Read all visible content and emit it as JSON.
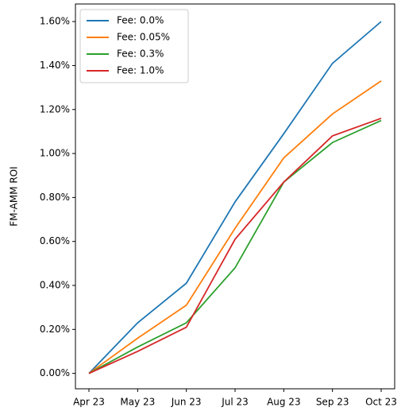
{
  "chart_data": {
    "type": "line",
    "ylabel": "FM-AMM ROI",
    "categories": [
      "Apr 23",
      "May 23",
      "Jun 23",
      "Jul 23",
      "Aug 23",
      "Sep 23",
      "Oct 23"
    ],
    "series": [
      {
        "name": "Fee: 0.0%",
        "color": "#1f77b4",
        "values": [
          0,
          0.23,
          0.41,
          0.78,
          1.09,
          1.41,
          1.6
        ]
      },
      {
        "name": "Fee: 0.05%",
        "color": "#ff7f0e",
        "values": [
          0,
          0.16,
          0.31,
          0.66,
          0.98,
          1.18,
          1.33
        ]
      },
      {
        "name": "Fee: 0.3%",
        "color": "#2ca02c",
        "values": [
          0,
          0.12,
          0.23,
          0.48,
          0.87,
          1.05,
          1.15
        ]
      },
      {
        "name": "Fee: 1.0%",
        "color": "#d62728",
        "values": [
          0,
          0.1,
          0.21,
          0.61,
          0.87,
          1.08,
          1.16
        ]
      }
    ],
    "ylim": [
      -0.07,
      1.68
    ],
    "yticks": [
      {
        "value": 0,
        "label": "0.00%"
      },
      {
        "value": 0.2,
        "label": "0.20%"
      },
      {
        "value": 0.4,
        "label": "0.40%"
      },
      {
        "value": 0.6,
        "label": "0.60%"
      },
      {
        "value": 0.8,
        "label": "0.80%"
      },
      {
        "value": 1.0,
        "label": "1.00%"
      },
      {
        "value": 1.2,
        "label": "1.20%"
      },
      {
        "value": 1.4,
        "label": "1.40%"
      },
      {
        "value": 1.6,
        "label": "1.60%"
      }
    ],
    "grid": false,
    "legend": "upper left"
  }
}
